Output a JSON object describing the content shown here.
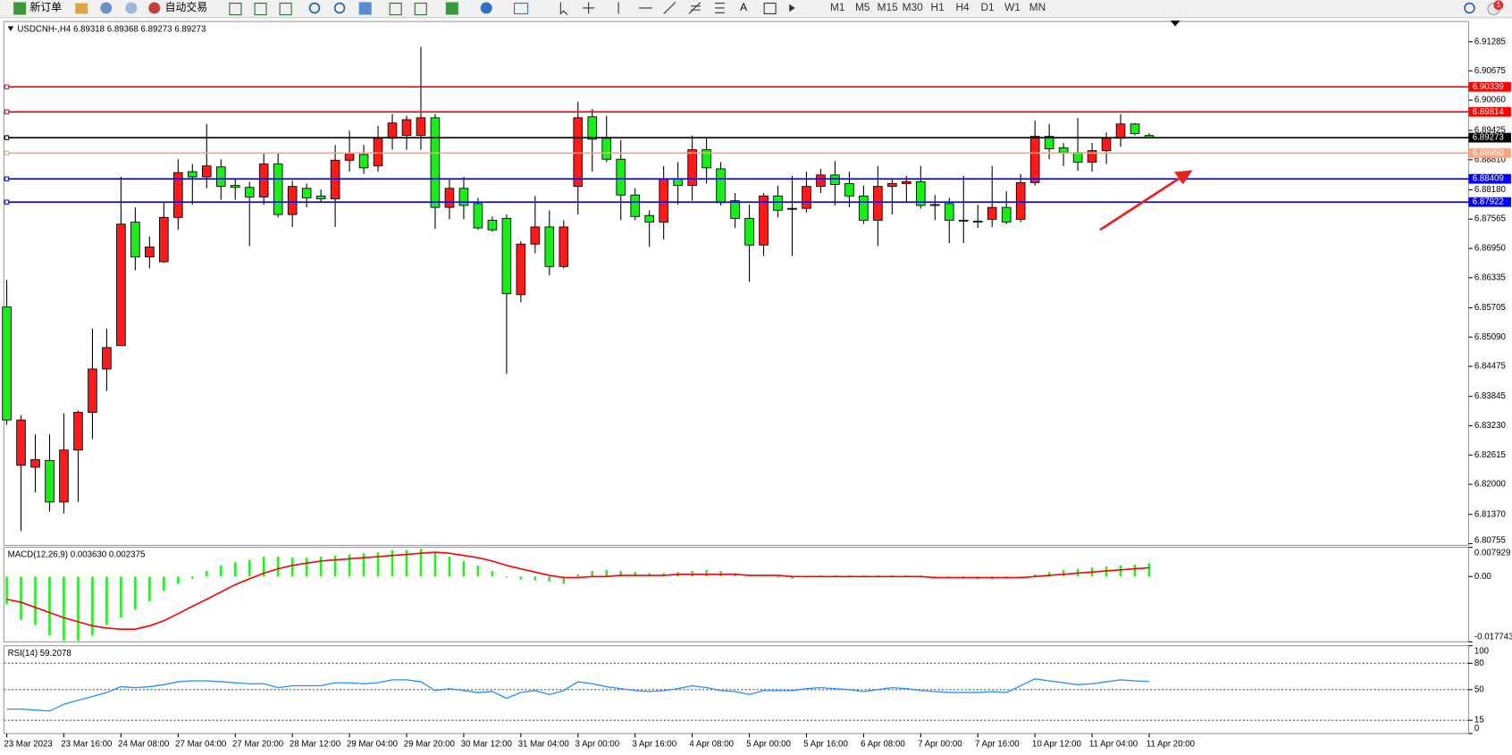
{
  "toolbar": {
    "new_order": "新订单",
    "auto_trading": "自动交易",
    "text_tool": "A",
    "timeframes": [
      "M1",
      "M5",
      "M15",
      "M30",
      "H1",
      "H4",
      "D1",
      "W1",
      "MN"
    ],
    "notifications": "1"
  },
  "chart_data": [
    {
      "type": "candlestick",
      "title": "USDCNH-,H4 6.89318 6.89368 6.89273 6.89273",
      "up_color": "#ff1a1a",
      "down_color": "#1aee1a",
      "ylim": [
        6.8072,
        6.9171
      ],
      "yticks": [
        6.91285,
        6.90675,
        {
          "value": 6.9006,
          "label": "6.90060"
        },
        6.89425,
        {
          "value": 6.8881,
          "label": "6.88810"
        },
        {
          "value": 6.8818,
          "label": "6.88180"
        },
        6.87565,
        {
          "value": 6.8695,
          "label": "6.86950"
        },
        6.86335,
        6.85705,
        {
          "value": 6.8509,
          "label": "6.85090"
        },
        6.84475,
        6.83845,
        {
          "value": 6.8323,
          "label": "6.83230"
        },
        6.82615,
        {
          "value": 6.82,
          "label": "6.82000"
        },
        {
          "value": 6.8137,
          "label": "6.81370"
        },
        6.80755
      ],
      "hlines": [
        {
          "value": 6.90339,
          "color": "#ff0000"
        },
        {
          "value": 6.89814,
          "color": "#ff0000"
        },
        {
          "value": 6.89273,
          "color": "#000000"
        },
        {
          "value": 6.8895,
          "label": "6.88950",
          "color": "#f4a582"
        },
        {
          "value": 6.88409,
          "color": "#0000ff"
        },
        {
          "value": 6.87922,
          "color": "#0000ff"
        }
      ],
      "categories": [
        "23 Mar 2023",
        null,
        null,
        null,
        "23 Mar 16:00",
        null,
        null,
        null,
        "24 Mar 08:00",
        null,
        null,
        null,
        "27 Mar 04:00",
        null,
        null,
        null,
        "27 Mar 20:00",
        null,
        null,
        null,
        "28 Mar 12:00",
        null,
        null,
        null,
        "29 Mar 04:00",
        null,
        null,
        null,
        "29 Mar 20:00",
        null,
        null,
        null,
        "30 Mar 12:00",
        null,
        null,
        null,
        "31 Mar 04:00",
        null,
        null,
        null,
        "3 Apr 00:00",
        null,
        null,
        null,
        "3 Apr 16:00",
        null,
        null,
        null,
        "4 Apr 08:00",
        null,
        null,
        null,
        "5 Apr 00:00",
        null,
        null,
        null,
        "5 Apr 16:00",
        null,
        null,
        null,
        "6 Apr 08:00",
        null,
        null,
        null,
        "7 Apr 00:00",
        null,
        null,
        null,
        "7 Apr 16:00",
        null,
        null,
        null,
        "10 Apr 12:00",
        null,
        null,
        null,
        "11 Apr 04:00",
        null,
        null,
        null,
        "11 Apr 20:00"
      ],
      "open": [
        6.8572,
        6.824,
        6.8236,
        6.825,
        6.8163,
        6.8272,
        6.8351,
        6.8442,
        6.8491,
        6.875,
        6.8677,
        6.8667,
        6.876,
        6.8856,
        6.8845,
        6.8866,
        6.8827,
        6.8823,
        6.8803,
        6.8872,
        6.8766,
        6.8821,
        6.8805,
        6.8799,
        6.888,
        6.8892,
        6.8868,
        6.8926,
        6.8932,
        6.8932,
        6.8969,
        6.8781,
        6.8821,
        6.8789,
        6.8754,
        6.8758,
        6.8598,
        6.8704,
        6.874,
        6.8657,
        6.8825,
        6.8971,
        6.8926,
        6.8882,
        6.8807,
        6.8764,
        6.875,
        6.8841,
        6.8827,
        6.8902,
        6.8862,
        6.8795,
        6.8758,
        6.8702,
        6.8805,
        6.8777,
        6.8779,
        6.8825,
        6.8849,
        6.8831,
        6.8805,
        6.8754,
        6.8825,
        6.8831,
        6.8835,
        6.8787,
        6.8789,
        6.8754,
        6.8752,
        6.8756,
        6.8781,
        6.8756,
        6.8833,
        6.893,
        6.8906,
        6.8896,
        6.8876,
        6.89,
        6.8926,
        6.8956,
        6.89318
      ],
      "high": [
        6.8629,
        6.8345,
        6.8305,
        6.8305,
        6.8349,
        6.8355,
        6.8527,
        6.8527,
        6.8845,
        6.8781,
        6.872,
        6.8791,
        6.8882,
        6.8872,
        6.8956,
        6.8882,
        6.8841,
        6.8835,
        6.8896,
        6.8896,
        6.8837,
        6.8831,
        6.8819,
        6.8912,
        6.8942,
        6.8912,
        6.8952,
        6.8977,
        6.8973,
        6.9118,
        6.8977,
        6.8841,
        6.8845,
        6.8801,
        6.8762,
        6.8766,
        6.871,
        6.8805,
        6.8775,
        6.8754,
        6.9003,
        6.8987,
        6.8973,
        6.8922,
        6.8821,
        6.8775,
        6.8868,
        6.8876,
        6.8932,
        6.8928,
        6.8876,
        6.8811,
        6.8787,
        6.8811,
        6.8827,
        6.8847,
        6.8856,
        6.8862,
        6.8878,
        6.8856,
        6.8827,
        6.8868,
        6.8841,
        6.8847,
        6.8868,
        6.8807,
        6.8801,
        6.8847,
        6.8787,
        6.8868,
        6.8815,
        6.8851,
        6.8963,
        6.8956,
        6.8916,
        6.8969,
        6.8916,
        6.8938,
        6.8977,
        6.8958,
        6.89368
      ],
      "low": [
        6.8325,
        6.8102,
        6.8183,
        6.8143,
        6.8139,
        6.8163,
        6.8295,
        6.8396,
        6.8491,
        6.8649,
        6.8653,
        6.8665,
        6.8734,
        6.8787,
        6.8821,
        6.8797,
        6.8797,
        6.87,
        6.8787,
        6.876,
        6.874,
        6.8781,
        6.8791,
        6.874,
        6.8856,
        6.8851,
        6.8856,
        6.8902,
        6.8902,
        6.8902,
        6.8736,
        6.8756,
        6.8756,
        6.8734,
        6.873,
        6.8432,
        6.8582,
        6.8685,
        6.8639,
        6.8653,
        6.8766,
        6.8856,
        6.8876,
        6.8754,
        6.8754,
        6.8698,
        6.8714,
        6.8787,
        6.8795,
        6.8831,
        6.8785,
        6.8738,
        6.8625,
        6.8679,
        6.876,
        6.8679,
        6.877,
        6.8811,
        6.8785,
        6.8781,
        6.8746,
        6.87,
        6.8766,
        6.8791,
        6.8779,
        6.8754,
        6.8706,
        6.8706,
        6.8738,
        6.874,
        6.8746,
        6.875,
        6.8827,
        6.8882,
        6.8868,
        6.8858,
        6.8856,
        6.8872,
        6.8908,
        6.8932,
        6.89273
      ],
      "close": [
        6.8335,
        6.8335,
        6.8252,
        6.8163,
        6.8272,
        6.8351,
        6.8442,
        6.8487,
        6.8746,
        6.8677,
        6.8698,
        6.876,
        6.8854,
        6.8845,
        6.8868,
        6.8825,
        6.8823,
        6.8803,
        6.8872,
        6.8766,
        6.8825,
        6.8801,
        6.8799,
        6.888,
        6.8894,
        6.8864,
        6.8926,
        6.8958,
        6.8965,
        6.8969,
        6.8781,
        6.8821,
        6.8785,
        6.8738,
        6.8734,
        6.86,
        6.8704,
        6.874,
        6.8657,
        6.874,
        6.8969,
        6.8924,
        6.8882,
        6.8807,
        6.8762,
        6.875,
        6.8841,
        6.8827,
        6.8902,
        6.8864,
        6.8791,
        6.8758,
        6.8702,
        6.8805,
        6.8775,
        6.8779,
        6.8825,
        6.8849,
        6.8829,
        6.8805,
        6.8754,
        6.8825,
        6.8831,
        6.8835,
        6.8785,
        6.8785,
        6.8754,
        6.8752,
        6.875,
        6.8781,
        6.875,
        6.8833,
        6.893,
        6.8904,
        6.8896,
        6.8876,
        6.89,
        6.8926,
        6.8956,
        6.8936,
        6.89273
      ]
    },
    {
      "type": "macd",
      "title": "MACD(12,26,9) 0.003630 0.002375",
      "ylim": [
        -0.017743,
        0.007929
      ],
      "yticks": [
        0.007929,
        {
          "value": 0,
          "label": "0.00"
        },
        -0.017743
      ],
      "series": [
        {
          "color": "#22ee22",
          "values": [
            -0.0076,
            -0.0118,
            -0.0132,
            -0.016,
            -0.0174,
            -0.0174,
            -0.016,
            -0.0132,
            -0.0112,
            -0.009,
            -0.0067,
            -0.0039,
            -0.002,
            -0.0006,
            0.0015,
            0.003,
            0.0039,
            0.0045,
            0.0054,
            0.0054,
            0.0051,
            0.0051,
            0.0054,
            0.0057,
            0.006,
            0.0063,
            0.0066,
            0.0072,
            0.0072,
            0.0075,
            0.0066,
            0.0054,
            0.0042,
            0.003,
            0.0015,
            -0.0003,
            -0.0008,
            -0.0011,
            -0.0014,
            -0.002,
            0.0006,
            0.0015,
            0.0018,
            0.0015,
            0.0012,
            0.0009,
            0.0009,
            0.0012,
            0.0015,
            0.0018,
            0.0015,
            0.0009,
            0.0003,
            0.0003,
            -0.0003,
            -0.0006,
            -0.0003,
            0.0003,
            0.0003,
            0.0003,
            0.0003,
            0.0003,
            0.0003,
            0.0003,
            0.0003,
            0,
            -0.0003,
            -0.0006,
            -0.0008,
            -0.0008,
            -0.0006,
            -0.0003,
            0.0006,
            0.0012,
            0.0018,
            0.0021,
            0.0024,
            0.0027,
            0.003,
            0.0033,
            0.00363
          ]
        },
        {
          "color": "#ff0000",
          "values": [
            -0.0062,
            -0.007,
            -0.0084,
            -0.0098,
            -0.0112,
            -0.0123,
            -0.0134,
            -0.014,
            -0.0143,
            -0.0143,
            -0.0134,
            -0.012,
            -0.0101,
            -0.0081,
            -0.0062,
            -0.0042,
            -0.0022,
            -0.0006,
            0.0009,
            0.0021,
            0.003,
            0.0036,
            0.0042,
            0.0045,
            0.0048,
            0.0051,
            0.0054,
            0.0057,
            0.006,
            0.0063,
            0.0066,
            0.0063,
            0.0057,
            0.0051,
            0.0042,
            0.003,
            0.0021,
            0.0012,
            0.0003,
            -0.0003,
            -0.0003,
            0,
            0,
            0.0003,
            0.0003,
            0.0003,
            0.0003,
            0.0006,
            0.0006,
            0.0006,
            0.0006,
            0.0006,
            0.0003,
            0.0003,
            0.0003,
            0,
            0,
            0,
            0,
            0,
            0,
            0,
            0,
            0,
            0,
            -0.0003,
            -0.0003,
            -0.0003,
            -0.0003,
            -0.0003,
            -0.0003,
            -0.0003,
            0,
            0.0003,
            0.0006,
            0.0009,
            0.0012,
            0.0015,
            0.0018,
            0.0021,
            0.002375
          ]
        }
      ]
    },
    {
      "type": "line",
      "title": "RSI(14) 59.2078",
      "color": "#1e90ff",
      "ylim": [
        0,
        100
      ],
      "yticks": [
        100,
        80,
        50,
        15,
        0
      ],
      "levels": [
        80,
        50,
        15
      ],
      "values": [
        27.8,
        27.8,
        26.7,
        25.6,
        33.3,
        37.8,
        42.2,
        46.7,
        53.3,
        52.2,
        53.3,
        55.6,
        58.9,
        60.0,
        60.0,
        58.9,
        57.8,
        56.7,
        56.7,
        52.2,
        54.4,
        54.4,
        54.4,
        57.8,
        57.8,
        56.7,
        57.8,
        61.1,
        61.1,
        58.9,
        48.9,
        51.1,
        48.9,
        46.7,
        47.8,
        40.0,
        46.7,
        48.9,
        44.4,
        48.9,
        58.9,
        56.7,
        53.3,
        51.1,
        48.9,
        47.8,
        48.9,
        51.1,
        54.4,
        52.2,
        48.9,
        47.8,
        44.4,
        48.9,
        48.9,
        48.9,
        51.1,
        52.2,
        51.1,
        50.0,
        47.8,
        50.0,
        52.2,
        51.1,
        48.9,
        47.8,
        46.7,
        46.7,
        46.7,
        47.8,
        46.7,
        54.4,
        62.2,
        60.0,
        57.8,
        55.6,
        56.7,
        58.9,
        61.1,
        60.0,
        59.2078
      ]
    }
  ]
}
